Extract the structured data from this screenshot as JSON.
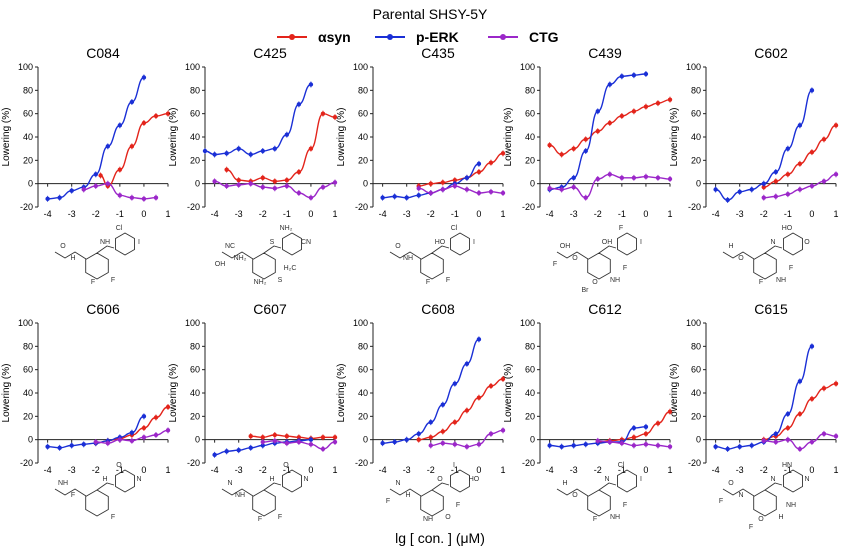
{
  "figure": {
    "title": "Parental SHSY-5Y",
    "xlabel": "lg [ con. ] (μM)",
    "legend": [
      {
        "label": "αsyn",
        "color": "#e3241b"
      },
      {
        "label": "p-ERK",
        "color": "#1a2fd6"
      },
      {
        "label": "CTG",
        "color": "#9b27c9"
      }
    ]
  },
  "chart_data": [
    {
      "type": "line",
      "title": "C084",
      "ylabel": "Lowering (%)",
      "xlim": [
        -4.4,
        1
      ],
      "ylim": [
        -20,
        100
      ],
      "xticks": [
        "-4",
        "-3",
        "-2",
        "-1",
        "0",
        "1"
      ],
      "yticks": [
        "-20",
        "0",
        "20",
        "40",
        "60",
        "80",
        "100"
      ],
      "series": [
        {
          "name": "αsyn",
          "color": "#e3241b",
          "x": [
            -1.8,
            -1.5,
            -1,
            -0.5,
            0,
            0.5,
            1
          ],
          "y": [
            7,
            -2,
            12,
            32,
            52,
            58,
            60
          ]
        },
        {
          "name": "p-ERK",
          "color": "#1a2fd6",
          "x": [
            -4,
            -3.5,
            -3,
            -2.5,
            -2,
            -1.5,
            -1,
            -0.5,
            0
          ],
          "y": [
            -13,
            -12,
            -6,
            -3,
            8,
            32,
            50,
            70,
            91
          ]
        },
        {
          "name": "CTG",
          "color": "#9b27c9",
          "x": [
            -2.5,
            -2,
            -1.5,
            -1,
            -0.5,
            0,
            0.5
          ],
          "y": [
            -5,
            -2,
            0,
            -10,
            -12,
            -13,
            -12
          ]
        }
      ]
    },
    {
      "type": "line",
      "title": "C425",
      "ylabel": "Lowering (%)",
      "xlim": [
        -4.4,
        1
      ],
      "ylim": [
        -20,
        100
      ],
      "xticks": [
        "-4",
        "-3",
        "-2",
        "-1",
        "0",
        "1"
      ],
      "yticks": [
        "-20",
        "0",
        "20",
        "40",
        "60",
        "80",
        "100"
      ],
      "series": [
        {
          "name": "αsyn",
          "color": "#e3241b",
          "x": [
            -3.5,
            -3,
            -2.5,
            -2,
            -1.5,
            -1,
            -0.5,
            0,
            0.5,
            1
          ],
          "y": [
            12,
            3,
            2,
            5,
            2,
            3,
            10,
            30,
            60,
            57
          ]
        },
        {
          "name": "p-ERK",
          "color": "#1a2fd6",
          "x": [
            -4.4,
            -4,
            -3.5,
            -3,
            -2.5,
            -2,
            -1.5,
            -1,
            -0.5,
            0
          ],
          "y": [
            28,
            25,
            26,
            30,
            25,
            28,
            30,
            42,
            68,
            85
          ]
        },
        {
          "name": "CTG",
          "color": "#9b27c9",
          "x": [
            -4,
            -3.5,
            -3,
            -2.5,
            -2,
            -1.5,
            -1,
            -0.5,
            0,
            0.5,
            1
          ],
          "y": [
            2,
            -2,
            -1,
            0,
            -3,
            -4,
            -2,
            -8,
            -12,
            -3,
            1
          ]
        }
      ]
    },
    {
      "type": "line",
      "title": "C435",
      "ylabel": "Lowering (%)",
      "xlim": [
        -4.4,
        1
      ],
      "ylim": [
        -20,
        100
      ],
      "xticks": [
        "-4",
        "-3",
        "-2",
        "-1",
        "0",
        "1"
      ],
      "yticks": [
        "-20",
        "0",
        "20",
        "40",
        "60",
        "80",
        "100"
      ],
      "series": [
        {
          "name": "αsyn",
          "color": "#e3241b",
          "x": [
            -2.5,
            -2,
            -1.5,
            -1,
            -0.5,
            0,
            0.5,
            1
          ],
          "y": [
            -2,
            0,
            1,
            3,
            5,
            10,
            18,
            26
          ]
        },
        {
          "name": "p-ERK",
          "color": "#1a2fd6",
          "x": [
            -4,
            -3.5,
            -3,
            -2.5,
            -2,
            -1.5,
            -1,
            -0.5,
            0
          ],
          "y": [
            -12,
            -11,
            -12,
            -10,
            -8,
            -5,
            0,
            5,
            17
          ]
        },
        {
          "name": "CTG",
          "color": "#9b27c9",
          "x": [
            -2.5,
            -2,
            -1.5,
            -1,
            -0.5,
            0,
            0.5,
            1
          ],
          "y": [
            -4,
            -8,
            -5,
            -2,
            -5,
            -8,
            -7,
            -8
          ]
        }
      ]
    },
    {
      "type": "line",
      "title": "C439",
      "ylabel": "Lowering (%)",
      "xlim": [
        -4.4,
        1
      ],
      "ylim": [
        -20,
        100
      ],
      "xticks": [
        "-4",
        "-3",
        "-2",
        "-1",
        "0",
        "1"
      ],
      "yticks": [
        "-20",
        "0",
        "20",
        "40",
        "60",
        "80",
        "100"
      ],
      "series": [
        {
          "name": "αsyn",
          "color": "#e3241b",
          "x": [
            -4,
            -3.5,
            -3,
            -2.5,
            -2,
            -1.5,
            -1,
            -0.5,
            0,
            0.5,
            1
          ],
          "y": [
            33,
            25,
            30,
            38,
            45,
            52,
            58,
            62,
            66,
            69,
            72
          ]
        },
        {
          "name": "p-ERK",
          "color": "#1a2fd6",
          "x": [
            -4,
            -3.5,
            -3,
            -2.5,
            -2,
            -1.5,
            -1,
            -0.5,
            0
          ],
          "y": [
            -5,
            -3,
            5,
            28,
            62,
            85,
            92,
            93,
            94
          ]
        },
        {
          "name": "CTG",
          "color": "#9b27c9",
          "x": [
            -4,
            -3.5,
            -3,
            -2.5,
            -2,
            -1.5,
            -1,
            -0.5,
            0,
            0.5,
            1
          ],
          "y": [
            -4,
            -5,
            -3,
            -12,
            4,
            8,
            5,
            5,
            6,
            5,
            4
          ]
        }
      ]
    },
    {
      "type": "line",
      "title": "C602",
      "ylabel": "Lowering (%)",
      "xlim": [
        -4.4,
        1
      ],
      "ylim": [
        -20,
        100
      ],
      "xticks": [
        "-4",
        "-3",
        "-2",
        "-1",
        "0",
        "1"
      ],
      "yticks": [
        "-20",
        "0",
        "20",
        "40",
        "60",
        "80",
        "100"
      ],
      "series": [
        {
          "name": "αsyn",
          "color": "#e3241b",
          "x": [
            -2,
            -1.5,
            -1,
            -0.5,
            0,
            0.5,
            1
          ],
          "y": [
            -3,
            2,
            8,
            17,
            27,
            38,
            50
          ]
        },
        {
          "name": "p-ERK",
          "color": "#1a2fd6",
          "x": [
            -4,
            -3.5,
            -3,
            -2.5,
            -2,
            -1.5,
            -1,
            -0.5,
            0
          ],
          "y": [
            -5,
            -14,
            -7,
            -5,
            0,
            10,
            30,
            50,
            80
          ]
        },
        {
          "name": "CTG",
          "color": "#9b27c9",
          "x": [
            -2,
            -1.5,
            -1,
            -0.5,
            0,
            0.5,
            1
          ],
          "y": [
            -12,
            -11,
            -9,
            -5,
            -2,
            2,
            8
          ]
        }
      ]
    },
    {
      "type": "line",
      "title": "C606",
      "ylabel": "Lowering (%)",
      "xlim": [
        -4.4,
        1
      ],
      "ylim": [
        -20,
        100
      ],
      "xticks": [
        "-4",
        "-3",
        "-2",
        "-1",
        "0",
        "1"
      ],
      "yticks": [
        "-20",
        "0",
        "20",
        "40",
        "60",
        "80",
        "100"
      ],
      "series": [
        {
          "name": "αsyn",
          "color": "#e3241b",
          "x": [
            -2,
            -1.5,
            -1,
            -0.5,
            0,
            0.5,
            1
          ],
          "y": [
            -3,
            -1,
            1,
            4,
            10,
            19,
            28
          ]
        },
        {
          "name": "p-ERK",
          "color": "#1a2fd6",
          "x": [
            -4,
            -3.5,
            -3,
            -2.5,
            -2,
            -1.5,
            -1,
            -0.5,
            0
          ],
          "y": [
            -6,
            -7,
            -5,
            -4,
            -3,
            -1,
            2,
            6,
            20
          ]
        },
        {
          "name": "CTG",
          "color": "#9b27c9",
          "x": [
            -2,
            -1.5,
            -1,
            -0.5,
            0,
            0.5,
            1
          ],
          "y": [
            -2,
            -3,
            0,
            -1,
            2,
            4,
            8
          ]
        }
      ]
    },
    {
      "type": "line",
      "title": "C607",
      "ylabel": "Lowering (%)",
      "xlim": [
        -4.4,
        1
      ],
      "ylim": [
        -20,
        100
      ],
      "xticks": [
        "-4",
        "-3",
        "-2",
        "-1",
        "0",
        "1"
      ],
      "yticks": [
        "-20",
        "0",
        "20",
        "40",
        "60",
        "80",
        "100"
      ],
      "series": [
        {
          "name": "αsyn",
          "color": "#e3241b",
          "x": [
            -2.5,
            -2,
            -1.5,
            -1,
            -0.5,
            0,
            0.5,
            1
          ],
          "y": [
            3,
            2,
            4,
            3,
            2,
            1,
            2,
            2
          ]
        },
        {
          "name": "p-ERK",
          "color": "#1a2fd6",
          "x": [
            -4,
            -3.5,
            -3,
            -2.5,
            -2,
            -1.5,
            -1,
            -0.5,
            0
          ],
          "y": [
            -13,
            -10,
            -9,
            -7,
            -5,
            -3,
            -2,
            -1,
            0
          ]
        },
        {
          "name": "CTG",
          "color": "#9b27c9",
          "x": [
            -2,
            -1.5,
            -1,
            -0.5,
            0,
            0.5,
            1
          ],
          "y": [
            -2,
            -1,
            -3,
            -2,
            -4,
            -8,
            -2
          ]
        }
      ]
    },
    {
      "type": "line",
      "title": "C608",
      "ylabel": "Lowering (%)",
      "xlim": [
        -4.4,
        1
      ],
      "ylim": [
        -20,
        100
      ],
      "xticks": [
        "-4",
        "-3",
        "-2",
        "-1",
        "0",
        "1"
      ],
      "yticks": [
        "-20",
        "0",
        "20",
        "40",
        "60",
        "80",
        "100"
      ],
      "series": [
        {
          "name": "αsyn",
          "color": "#e3241b",
          "x": [
            -2.5,
            -2,
            -1.5,
            -1,
            -0.5,
            0,
            0.5,
            1
          ],
          "y": [
            0,
            2,
            7,
            15,
            25,
            36,
            46,
            52
          ]
        },
        {
          "name": "p-ERK",
          "color": "#1a2fd6",
          "x": [
            -4,
            -3.5,
            -3,
            -2.5,
            -2,
            -1.5,
            -1,
            -0.5,
            0
          ],
          "y": [
            -3,
            -2,
            0,
            5,
            15,
            30,
            48,
            65,
            86
          ]
        },
        {
          "name": "CTG",
          "color": "#9b27c9",
          "x": [
            -2,
            -1.5,
            -1,
            -0.5,
            0,
            0.5,
            1
          ],
          "y": [
            -5,
            -3,
            -4,
            -6,
            -4,
            5,
            8
          ]
        }
      ]
    },
    {
      "type": "line",
      "title": "C612",
      "ylabel": "Lowering (%)",
      "xlim": [
        -4.4,
        1
      ],
      "ylim": [
        -20,
        100
      ],
      "xticks": [
        "-4",
        "-3",
        "-2",
        "-1",
        "0",
        "1"
      ],
      "yticks": [
        "-20",
        "0",
        "20",
        "40",
        "60",
        "80",
        "100"
      ],
      "series": [
        {
          "name": "αsyn",
          "color": "#e3241b",
          "x": [
            -2,
            -1.5,
            -1,
            -0.5,
            0,
            0.5,
            1
          ],
          "y": [
            -2,
            -1,
            0,
            2,
            5,
            14,
            24
          ]
        },
        {
          "name": "p-ERK",
          "color": "#1a2fd6",
          "x": [
            -4,
            -3.5,
            -3,
            -2.5,
            -2,
            -1.5,
            -1,
            -0.5,
            0
          ],
          "y": [
            -5,
            -6,
            -5,
            -4,
            -3,
            -2,
            -2,
            10,
            11
          ]
        },
        {
          "name": "CTG",
          "color": "#9b27c9",
          "x": [
            -2,
            -1.5,
            -1,
            -0.5,
            0,
            0.5,
            1
          ],
          "y": [
            -1,
            -2,
            -3,
            -5,
            -4,
            -5,
            -6
          ]
        }
      ]
    },
    {
      "type": "line",
      "title": "C615",
      "ylabel": "Lowering (%)",
      "xlim": [
        -4.4,
        1
      ],
      "ylim": [
        -20,
        100
      ],
      "xticks": [
        "-4",
        "-3",
        "-2",
        "-1",
        "0",
        "1"
      ],
      "yticks": [
        "-20",
        "0",
        "20",
        "40",
        "60",
        "80",
        "100"
      ],
      "series": [
        {
          "name": "αsyn",
          "color": "#e3241b",
          "x": [
            -2,
            -1.5,
            -1,
            -0.5,
            0,
            0.5,
            1
          ],
          "y": [
            0,
            3,
            10,
            22,
            35,
            44,
            48
          ]
        },
        {
          "name": "p-ERK",
          "color": "#1a2fd6",
          "x": [
            -4,
            -3.5,
            -3,
            -2.5,
            -2,
            -1.5,
            -1,
            -0.5,
            0
          ],
          "y": [
            -6,
            -8,
            -6,
            -5,
            -2,
            5,
            22,
            50,
            80
          ]
        },
        {
          "name": "CTG",
          "color": "#9b27c9",
          "x": [
            -2,
            -1.5,
            -1,
            -0.5,
            0,
            0.5,
            1
          ],
          "y": [
            -1,
            -2,
            0,
            -8,
            -2,
            5,
            3
          ]
        }
      ]
    }
  ],
  "structure_labels": [
    [
      "Cl",
      "I",
      "NH",
      "O",
      "H",
      "F",
      "F"
    ],
    [
      "NH₂",
      "CN",
      "S",
      "NC",
      "NH₂",
      "S",
      "NH₂",
      "H₂C",
      "OH"
    ],
    [
      "Cl",
      "I",
      "HO",
      "O",
      "NH",
      "F",
      "F"
    ],
    [
      "F",
      "I",
      "OH",
      "OH",
      "O",
      "NH",
      "O",
      "F",
      "F",
      "Br"
    ],
    [
      "HO",
      "O",
      "N",
      "H",
      "O",
      "NH",
      "F",
      "F"
    ],
    [
      "O",
      "N",
      "H",
      "NH",
      "F",
      "F"
    ],
    [
      "O",
      "N",
      "H",
      "N",
      "NH",
      "F",
      "F"
    ],
    [
      "I",
      "HO",
      "O",
      "N",
      "H",
      "O",
      "NH",
      "F",
      "F"
    ],
    [
      "Cl",
      "I",
      "N",
      "H",
      "O",
      "NH",
      "F",
      "F"
    ],
    [
      "HN",
      "N",
      "N",
      "O",
      "N",
      "H",
      "O",
      "NH",
      "F",
      "F"
    ]
  ]
}
